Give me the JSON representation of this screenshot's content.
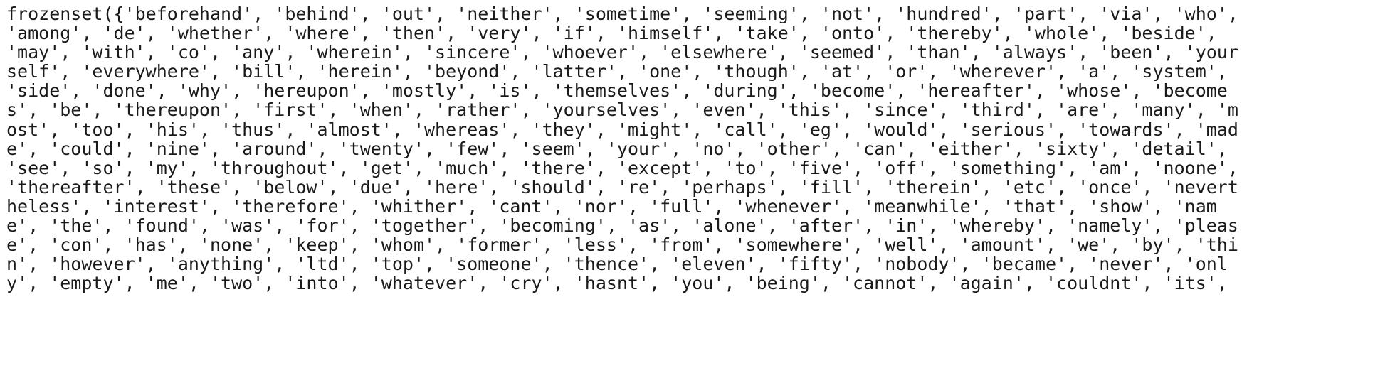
{
  "output": {
    "lines": [
      "frozenset({'beforehand', 'behind', 'out', 'neither', 'sometime', 'seeming', 'not', 'hundred', 'part', 'via', 'who',",
      "'among', 'de', 'whether', 'where', 'then', 'very', 'if', 'himself', 'take', 'onto', 'thereby', 'whole', 'beside',",
      "'may', 'with', 'co', 'any', 'wherein', 'sincere', 'whoever', 'elsewhere', 'seemed', 'than', 'always', 'been', 'your",
      "self', 'everywhere', 'bill', 'herein', 'beyond', 'latter', 'one', 'though', 'at', 'or', 'wherever', 'a', 'system',",
      "'side', 'done', 'why', 'hereupon', 'mostly', 'is', 'themselves', 'during', 'become', 'hereafter', 'whose', 'become",
      "s', 'be', 'thereupon', 'first', 'when', 'rather', 'yourselves', 'even', 'this', 'since', 'third', 'are', 'many', 'm",
      "ost', 'too', 'his', 'thus', 'almost', 'whereas', 'they', 'might', 'call', 'eg', 'would', 'serious', 'towards', 'mad",
      "e', 'could', 'nine', 'around', 'twenty', 'few', 'seem', 'your', 'no', 'other', 'can', 'either', 'sixty', 'detail',",
      "'see', 'so', 'my', 'throughout', 'get', 'much', 'there', 'except', 'to', 'five', 'off', 'something', 'am', 'noone',",
      "'thereafter', 'these', 'below', 'due', 'here', 'should', 're', 'perhaps', 'fill', 'therein', 'etc', 'once', 'nevert",
      "heless', 'interest', 'therefore', 'whither', 'cant', 'nor', 'full', 'whenever', 'meanwhile', 'that', 'show', 'nam",
      "e', 'the', 'found', 'was', 'for', 'together', 'becoming', 'as', 'alone', 'after', 'in', 'whereby', 'namely', 'pleas",
      "e', 'con', 'has', 'none', 'keep', 'whom', 'former', 'less', 'from', 'somewhere', 'well', 'amount', 'we', 'by', 'thi",
      "n', 'however', 'anything', 'ltd', 'top', 'someone', 'thence', 'eleven', 'fifty', 'nobody', 'became', 'never', 'onl",
      "y', 'empty', 'me', 'two', 'into', 'whatever', 'cry', 'hasnt', 'you', 'being', 'cannot', 'again', 'couldnt', 'its',"
    ]
  }
}
